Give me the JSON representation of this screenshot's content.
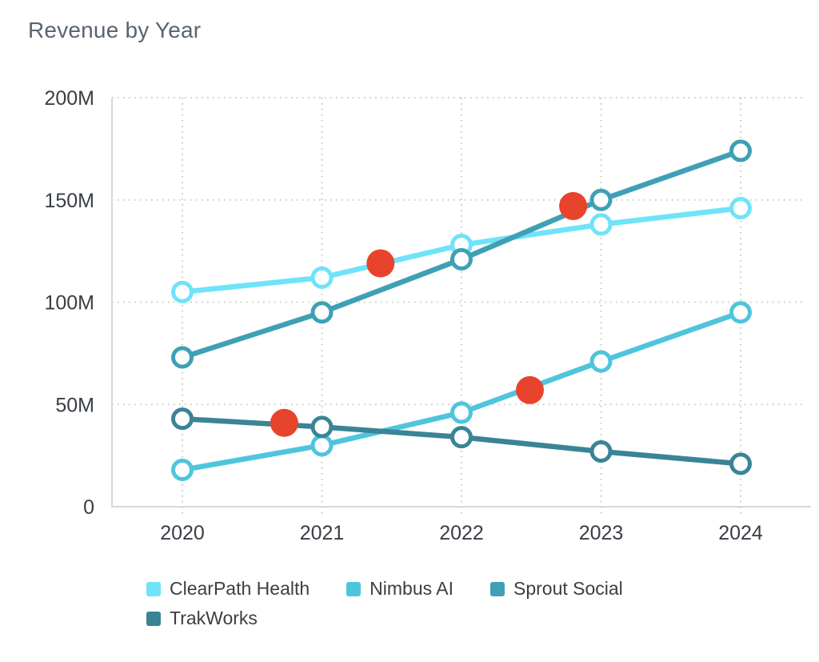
{
  "chart_data": {
    "type": "line",
    "title": "Revenue by Year",
    "x": [
      2020,
      2021,
      2022,
      2023,
      2024
    ],
    "x_tick_labels": [
      "2020",
      "2021",
      "2022",
      "2023",
      "2024"
    ],
    "y_tick_labels": [
      "0",
      "50M",
      "100M",
      "150M",
      "200M"
    ],
    "y_tick_values": [
      0,
      50,
      100,
      150,
      200
    ],
    "ylim": [
      0,
      200
    ],
    "unit": "M (millions USD)",
    "grid": "dotted",
    "legend_position": "bottom",
    "series": [
      {
        "name": "ClearPath Health",
        "color": "#6FE3F9",
        "values": [
          105,
          112,
          128,
          138,
          146
        ]
      },
      {
        "name": "Nimbus AI",
        "color": "#4EC5DC",
        "values": [
          18,
          30,
          46,
          71,
          95
        ]
      },
      {
        "name": "Sprout Social",
        "color": "#3FA0B5",
        "values": [
          73,
          95,
          121,
          150,
          174
        ]
      },
      {
        "name": "TrakWorks",
        "color": "#3A8496",
        "values": [
          43,
          39,
          34,
          27,
          21
        ]
      }
    ],
    "annotations": [
      {
        "x": 2020.73,
        "y": 41,
        "series": "TrakWorks"
      },
      {
        "x": 2021.42,
        "y": 119,
        "series": "ClearPath Health"
      },
      {
        "x": 2022.49,
        "y": 57,
        "series": "Nimbus AI"
      },
      {
        "x": 2022.8,
        "y": 147,
        "series": "Sprout Social"
      }
    ],
    "annotation_color": "#E8432C",
    "colors": {
      "title_text": "#5A6372",
      "tick_text": "#393E44",
      "grid": "#C6C6C6",
      "axis": "#D6D6DE",
      "background": "#FFFFFF"
    }
  }
}
